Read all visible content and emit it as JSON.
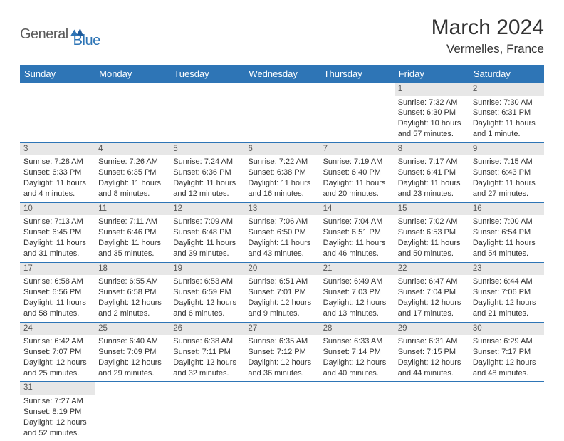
{
  "logo": {
    "part1": "General",
    "part2": "Blue"
  },
  "title": "March 2024",
  "location": "Vermelles, France",
  "colors": {
    "header_bg": "#2e75b6",
    "header_text": "#ffffff",
    "daynum_bg": "#e7e7e7",
    "row_divider": "#2e75b6",
    "text": "#333333",
    "logo_gray": "#5a5a5a",
    "logo_blue": "#2e75b6"
  },
  "weekdays": [
    "Sunday",
    "Monday",
    "Tuesday",
    "Wednesday",
    "Thursday",
    "Friday",
    "Saturday"
  ],
  "weeks": [
    [
      null,
      null,
      null,
      null,
      null,
      {
        "n": "1",
        "sunrise": "Sunrise: 7:32 AM",
        "sunset": "Sunset: 6:30 PM",
        "daylight": "Daylight: 10 hours and 57 minutes."
      },
      {
        "n": "2",
        "sunrise": "Sunrise: 7:30 AM",
        "sunset": "Sunset: 6:31 PM",
        "daylight": "Daylight: 11 hours and 1 minute."
      }
    ],
    [
      {
        "n": "3",
        "sunrise": "Sunrise: 7:28 AM",
        "sunset": "Sunset: 6:33 PM",
        "daylight": "Daylight: 11 hours and 4 minutes."
      },
      {
        "n": "4",
        "sunrise": "Sunrise: 7:26 AM",
        "sunset": "Sunset: 6:35 PM",
        "daylight": "Daylight: 11 hours and 8 minutes."
      },
      {
        "n": "5",
        "sunrise": "Sunrise: 7:24 AM",
        "sunset": "Sunset: 6:36 PM",
        "daylight": "Daylight: 11 hours and 12 minutes."
      },
      {
        "n": "6",
        "sunrise": "Sunrise: 7:22 AM",
        "sunset": "Sunset: 6:38 PM",
        "daylight": "Daylight: 11 hours and 16 minutes."
      },
      {
        "n": "7",
        "sunrise": "Sunrise: 7:19 AM",
        "sunset": "Sunset: 6:40 PM",
        "daylight": "Daylight: 11 hours and 20 minutes."
      },
      {
        "n": "8",
        "sunrise": "Sunrise: 7:17 AM",
        "sunset": "Sunset: 6:41 PM",
        "daylight": "Daylight: 11 hours and 23 minutes."
      },
      {
        "n": "9",
        "sunrise": "Sunrise: 7:15 AM",
        "sunset": "Sunset: 6:43 PM",
        "daylight": "Daylight: 11 hours and 27 minutes."
      }
    ],
    [
      {
        "n": "10",
        "sunrise": "Sunrise: 7:13 AM",
        "sunset": "Sunset: 6:45 PM",
        "daylight": "Daylight: 11 hours and 31 minutes."
      },
      {
        "n": "11",
        "sunrise": "Sunrise: 7:11 AM",
        "sunset": "Sunset: 6:46 PM",
        "daylight": "Daylight: 11 hours and 35 minutes."
      },
      {
        "n": "12",
        "sunrise": "Sunrise: 7:09 AM",
        "sunset": "Sunset: 6:48 PM",
        "daylight": "Daylight: 11 hours and 39 minutes."
      },
      {
        "n": "13",
        "sunrise": "Sunrise: 7:06 AM",
        "sunset": "Sunset: 6:50 PM",
        "daylight": "Daylight: 11 hours and 43 minutes."
      },
      {
        "n": "14",
        "sunrise": "Sunrise: 7:04 AM",
        "sunset": "Sunset: 6:51 PM",
        "daylight": "Daylight: 11 hours and 46 minutes."
      },
      {
        "n": "15",
        "sunrise": "Sunrise: 7:02 AM",
        "sunset": "Sunset: 6:53 PM",
        "daylight": "Daylight: 11 hours and 50 minutes."
      },
      {
        "n": "16",
        "sunrise": "Sunrise: 7:00 AM",
        "sunset": "Sunset: 6:54 PM",
        "daylight": "Daylight: 11 hours and 54 minutes."
      }
    ],
    [
      {
        "n": "17",
        "sunrise": "Sunrise: 6:58 AM",
        "sunset": "Sunset: 6:56 PM",
        "daylight": "Daylight: 11 hours and 58 minutes."
      },
      {
        "n": "18",
        "sunrise": "Sunrise: 6:55 AM",
        "sunset": "Sunset: 6:58 PM",
        "daylight": "Daylight: 12 hours and 2 minutes."
      },
      {
        "n": "19",
        "sunrise": "Sunrise: 6:53 AM",
        "sunset": "Sunset: 6:59 PM",
        "daylight": "Daylight: 12 hours and 6 minutes."
      },
      {
        "n": "20",
        "sunrise": "Sunrise: 6:51 AM",
        "sunset": "Sunset: 7:01 PM",
        "daylight": "Daylight: 12 hours and 9 minutes."
      },
      {
        "n": "21",
        "sunrise": "Sunrise: 6:49 AM",
        "sunset": "Sunset: 7:03 PM",
        "daylight": "Daylight: 12 hours and 13 minutes."
      },
      {
        "n": "22",
        "sunrise": "Sunrise: 6:47 AM",
        "sunset": "Sunset: 7:04 PM",
        "daylight": "Daylight: 12 hours and 17 minutes."
      },
      {
        "n": "23",
        "sunrise": "Sunrise: 6:44 AM",
        "sunset": "Sunset: 7:06 PM",
        "daylight": "Daylight: 12 hours and 21 minutes."
      }
    ],
    [
      {
        "n": "24",
        "sunrise": "Sunrise: 6:42 AM",
        "sunset": "Sunset: 7:07 PM",
        "daylight": "Daylight: 12 hours and 25 minutes."
      },
      {
        "n": "25",
        "sunrise": "Sunrise: 6:40 AM",
        "sunset": "Sunset: 7:09 PM",
        "daylight": "Daylight: 12 hours and 29 minutes."
      },
      {
        "n": "26",
        "sunrise": "Sunrise: 6:38 AM",
        "sunset": "Sunset: 7:11 PM",
        "daylight": "Daylight: 12 hours and 32 minutes."
      },
      {
        "n": "27",
        "sunrise": "Sunrise: 6:35 AM",
        "sunset": "Sunset: 7:12 PM",
        "daylight": "Daylight: 12 hours and 36 minutes."
      },
      {
        "n": "28",
        "sunrise": "Sunrise: 6:33 AM",
        "sunset": "Sunset: 7:14 PM",
        "daylight": "Daylight: 12 hours and 40 minutes."
      },
      {
        "n": "29",
        "sunrise": "Sunrise: 6:31 AM",
        "sunset": "Sunset: 7:15 PM",
        "daylight": "Daylight: 12 hours and 44 minutes."
      },
      {
        "n": "30",
        "sunrise": "Sunrise: 6:29 AM",
        "sunset": "Sunset: 7:17 PM",
        "daylight": "Daylight: 12 hours and 48 minutes."
      }
    ],
    [
      {
        "n": "31",
        "sunrise": "Sunrise: 7:27 AM",
        "sunset": "Sunset: 8:19 PM",
        "daylight": "Daylight: 12 hours and 52 minutes."
      },
      null,
      null,
      null,
      null,
      null,
      null
    ]
  ]
}
